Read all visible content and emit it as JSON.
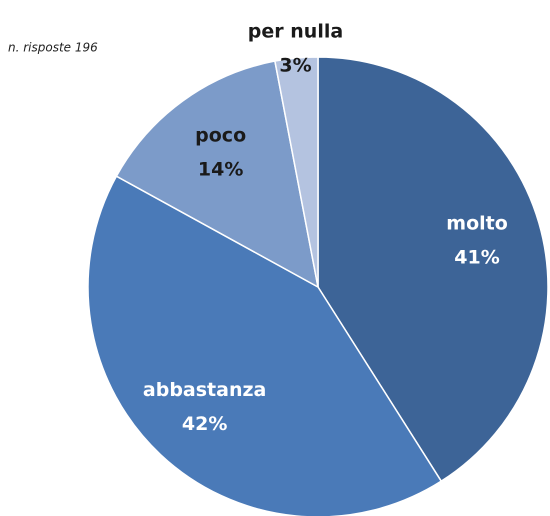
{
  "chart_data": {
    "type": "pie",
    "annotation": "n. risposte 196",
    "categories": [
      "molto",
      "abbastanza",
      "poco",
      "per nulla"
    ],
    "values": [
      41,
      42,
      14,
      3
    ],
    "value_labels": [
      "41%",
      "42%",
      "14%",
      "3%"
    ],
    "colors": [
      "#3d6497",
      "#4a7ab8",
      "#7c9bc9",
      "#b4c3e0"
    ],
    "label_colors": [
      "#ffffff",
      "#ffffff",
      "#1a1a1a",
      "#1a1a1a"
    ]
  }
}
